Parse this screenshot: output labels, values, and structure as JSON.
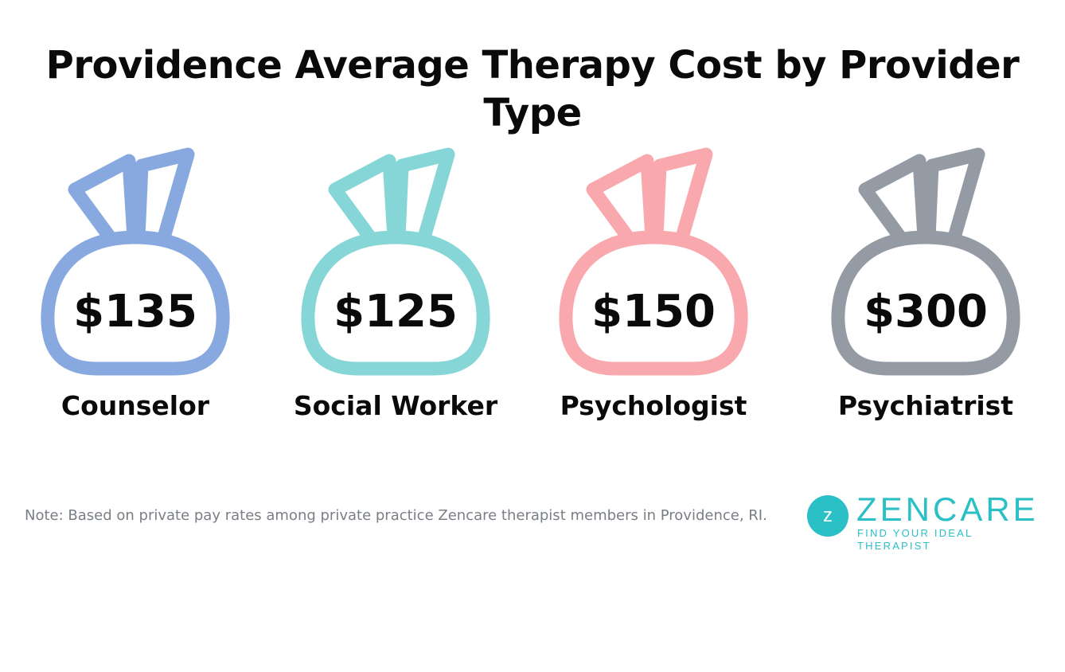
{
  "title": "Providence Average Therapy Cost by Provider Type",
  "providers": [
    {
      "price": "$135",
      "label": "Counselor",
      "color": "#88a8e0"
    },
    {
      "price": "$125",
      "label": "Social Worker",
      "color": "#86d6d8"
    },
    {
      "price": "$150",
      "label": "Psychologist",
      "color": "#f9a9ad"
    },
    {
      "price": "$300",
      "label": "Psychiatrist",
      "color": "#959ba4"
    }
  ],
  "note": "Note: Based on private pay rates among private practice Zencare therapist members in Providence, RI.",
  "logo": {
    "letter": "z",
    "word": "ZENCARE",
    "tagline": "FIND YOUR IDEAL THERAPIST",
    "color": "#2bbfc6"
  }
}
